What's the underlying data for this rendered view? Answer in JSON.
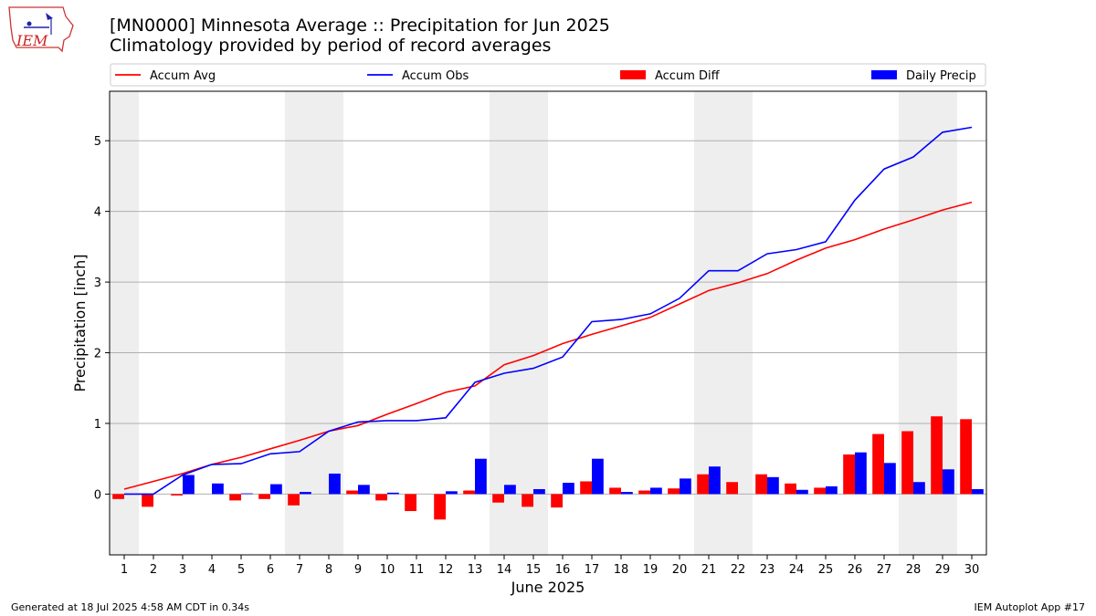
{
  "header": {
    "title_line1": "[MN0000] Minnesota Average :: Precipitation for Jun 2025",
    "title_line2": "Climatology provided by period of record averages"
  },
  "logo": {
    "text": "IEM",
    "icon": "iowa-state-outline-logo"
  },
  "footer": {
    "left": "Generated at 18 Jul 2025 4:58 AM CDT in 0.34s",
    "right": "IEM Autoplot App #17"
  },
  "colors": {
    "avg": "#ff0000",
    "obs": "#0000ff",
    "diff": "#ff0000",
    "daily": "#0000ff",
    "weekend_band": "#eeeeee"
  },
  "chart_data": {
    "type": "bar",
    "title": "[MN0000] Minnesota Average :: Precipitation for Jun 2025",
    "subtitle": "Climatology provided by period of record averages",
    "xlabel": "June 2025",
    "ylabel": "Precipitation [inch]",
    "ylim": [
      -0.86,
      5.7
    ],
    "yticks": [
      0,
      1,
      2,
      3,
      4,
      5
    ],
    "grid": "horizontal",
    "legend_placement": "top",
    "categories": [
      "1",
      "2",
      "3",
      "4",
      "5",
      "6",
      "7",
      "8",
      "9",
      "10",
      "11",
      "12",
      "13",
      "14",
      "15",
      "16",
      "17",
      "18",
      "19",
      "20",
      "21",
      "22",
      "23",
      "24",
      "25",
      "26",
      "27",
      "28",
      "29",
      "30"
    ],
    "weekend_days": [
      1,
      7,
      8,
      14,
      15,
      21,
      22,
      28,
      29
    ],
    "series": [
      {
        "name": "Accum Avg",
        "kind": "line",
        "values": [
          0.07,
          0.18,
          0.29,
          0.42,
          0.52,
          0.64,
          0.76,
          0.89,
          0.97,
          1.13,
          1.28,
          1.44,
          1.53,
          1.83,
          1.96,
          2.13,
          2.26,
          2.38,
          2.5,
          2.69,
          2.88,
          2.99,
          3.12,
          3.31,
          3.48,
          3.6,
          3.75,
          3.88,
          4.02,
          4.13
        ]
      },
      {
        "name": "Accum Obs",
        "kind": "line",
        "values": [
          0.0,
          0.0,
          0.27,
          0.42,
          0.43,
          0.57,
          0.6,
          0.89,
          1.02,
          1.04,
          1.04,
          1.08,
          1.58,
          1.71,
          1.78,
          1.94,
          2.44,
          2.47,
          2.55,
          2.77,
          3.16,
          3.16,
          3.4,
          3.46,
          3.57,
          4.16,
          4.6,
          4.77,
          5.12,
          5.19
        ]
      },
      {
        "name": "Accum Diff",
        "kind": "bar",
        "values": [
          -0.07,
          -0.18,
          -0.02,
          0.0,
          -0.09,
          -0.07,
          -0.16,
          0.0,
          0.05,
          -0.09,
          -0.24,
          -0.36,
          0.05,
          -0.12,
          -0.18,
          -0.19,
          0.18,
          0.09,
          0.05,
          0.08,
          0.28,
          0.17,
          0.28,
          0.15,
          0.09,
          0.56,
          0.85,
          0.89,
          1.1,
          1.06
        ]
      },
      {
        "name": "Daily Precip",
        "kind": "bar",
        "values": [
          0.0,
          0.0,
          0.27,
          0.15,
          0.01,
          0.14,
          0.03,
          0.29,
          0.13,
          0.02,
          0.0,
          0.04,
          0.5,
          0.13,
          0.07,
          0.16,
          0.5,
          0.03,
          0.09,
          0.22,
          0.39,
          0.0,
          0.24,
          0.06,
          0.11,
          0.59,
          0.44,
          0.17,
          0.35,
          0.07
        ]
      }
    ]
  }
}
